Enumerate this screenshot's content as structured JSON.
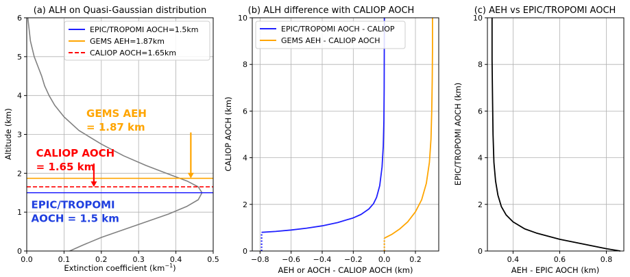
{
  "chart_data": [
    {
      "type": "line",
      "title": "(a) ALH on Quasi-Gaussian distribution",
      "xlabel": "Extinction coefficient (km$^{-1}$)",
      "xlabel_main": "Extinction coefficient (km",
      "xlabel_sup": "−1",
      "xlabel_close": ")",
      "ylabel": "Altitude (km)",
      "xlim": [
        0,
        0.5
      ],
      "ylim": [
        0,
        6
      ],
      "xticks": [
        "0.0",
        "0.1",
        "0.2",
        "0.3",
        "0.4",
        "0.5"
      ],
      "yticks": [
        "0",
        "1",
        "2",
        "3",
        "4",
        "5",
        "6"
      ],
      "grid": true,
      "legend_position": "top-right",
      "profile": {
        "color": "#808080",
        "x": [
          0.115,
          0.15,
          0.2,
          0.26,
          0.32,
          0.38,
          0.43,
          0.46,
          0.47,
          0.46,
          0.43,
          0.38,
          0.32,
          0.26,
          0.2,
          0.14,
          0.1,
          0.075,
          0.06,
          0.048,
          0.04,
          0.03,
          0.02,
          0.01,
          0.003
        ],
        "y": [
          0.0,
          0.15,
          0.35,
          0.55,
          0.75,
          0.95,
          1.15,
          1.32,
          1.5,
          1.65,
          1.8,
          1.98,
          2.2,
          2.45,
          2.75,
          3.1,
          3.45,
          3.75,
          4.0,
          4.25,
          4.5,
          4.75,
          5.0,
          5.4,
          6.0
        ]
      },
      "series": [
        {
          "name": "EPIC/TROPOMI AOCH=1.5km",
          "y": 1.5,
          "color": "#1f1fff",
          "style": "solid"
        },
        {
          "name": "GEMS AEH=1.87km",
          "y": 1.87,
          "color": "#ffa500",
          "style": "solid"
        },
        {
          "name": "CALIOP AOCH=1.65km",
          "y": 1.65,
          "color": "#ff0000",
          "style": "dashed"
        }
      ],
      "annotations": [
        {
          "lines": [
            "GEMS AEH",
            "= 1.87 km"
          ],
          "color": "#ffa500",
          "text_x": 0.16,
          "text_y": 3.45,
          "arrow_x": 0.44,
          "arrow_from": 3.05,
          "arrow_to": 1.87
        },
        {
          "lines": [
            "CALIOP AOCH",
            "= 1.65 km"
          ],
          "color": "#ff0000",
          "text_x": 0.025,
          "text_y": 2.43,
          "arrow_x": 0.18,
          "arrow_from": 2.25,
          "arrow_to": 1.65
        },
        {
          "lines": [
            "EPIC/TROPOMI",
            "AOCH = 1.5 km"
          ],
          "color": "#1f3fdf",
          "text_x": 0.012,
          "text_y": 1.1
        }
      ]
    },
    {
      "type": "line",
      "title": "(b) ALH difference with CALIOP AOCH",
      "xlabel": "AEH or AOCH - CALIOP AOCH (km)",
      "ylabel": "CALIOP AOCH (km)",
      "xlim": [
        -0.85,
        0.35
      ],
      "ylim": [
        0,
        10
      ],
      "xticks": [
        "−0.8",
        "−0.6",
        "−0.4",
        "−0.2",
        "0.0",
        "0.2"
      ],
      "xtick_values": [
        -0.8,
        -0.6,
        -0.4,
        -0.2,
        0.0,
        0.2
      ],
      "yticks": [
        "0",
        "2",
        "4",
        "6",
        "8",
        "10"
      ],
      "grid": true,
      "legend_position": "top-left",
      "series": [
        {
          "name": "EPIC/TROPOMI AOCH - CALIOP",
          "color": "#1f1fff",
          "x": [
            -0.79,
            -0.7,
            -0.6,
            -0.5,
            -0.4,
            -0.3,
            -0.2,
            -0.15,
            -0.1,
            -0.07,
            -0.05,
            -0.03,
            -0.015,
            -0.007,
            -0.003,
            -0.001,
            0.0
          ],
          "y": [
            0.8,
            0.84,
            0.9,
            0.98,
            1.08,
            1.22,
            1.42,
            1.57,
            1.8,
            2.03,
            2.3,
            2.8,
            3.6,
            4.5,
            5.6,
            7.0,
            10.0
          ],
          "dotted_x": -0.79,
          "dotted_y": [
            0.0,
            0.8
          ]
        },
        {
          "name": "GEMS AEH - CALIOP AOCH",
          "color": "#ffa500",
          "x": [
            0.0,
            0.05,
            0.1,
            0.15,
            0.2,
            0.24,
            0.27,
            0.29,
            0.3,
            0.305,
            0.308,
            0.31,
            0.31
          ],
          "y": [
            0.55,
            0.72,
            0.95,
            1.25,
            1.68,
            2.2,
            2.9,
            3.8,
            4.8,
            6.0,
            7.3,
            8.6,
            10.0
          ],
          "dotted_x": 0.0,
          "dotted_y": [
            0.0,
            0.55
          ]
        }
      ]
    },
    {
      "type": "line",
      "title": "(c) AEH vs EPIC/TROPOMI AOCH",
      "xlabel": "AEH - EPIC AOCH (km)",
      "ylabel": "EPIC/TROPOMI AOCH (km)",
      "xlim": [
        0.29,
        0.875
      ],
      "ylim": [
        0,
        10
      ],
      "xticks": [
        "0.4",
        "0.6",
        "0.8"
      ],
      "xtick_values": [
        0.4,
        0.6,
        0.8
      ],
      "yticks": [
        "0",
        "2",
        "4",
        "6",
        "8",
        "10"
      ],
      "grid": true,
      "series": [
        {
          "color": "#000000",
          "x": [
            0.86,
            0.8,
            0.7,
            0.6,
            0.5,
            0.45,
            0.4,
            0.37,
            0.35,
            0.335,
            0.325,
            0.318,
            0.314,
            0.312,
            0.31,
            0.31
          ],
          "y": [
            0.0,
            0.1,
            0.3,
            0.5,
            0.77,
            0.95,
            1.25,
            1.55,
            1.9,
            2.4,
            3.0,
            3.8,
            5.0,
            6.5,
            8.2,
            10.0
          ]
        }
      ]
    }
  ]
}
